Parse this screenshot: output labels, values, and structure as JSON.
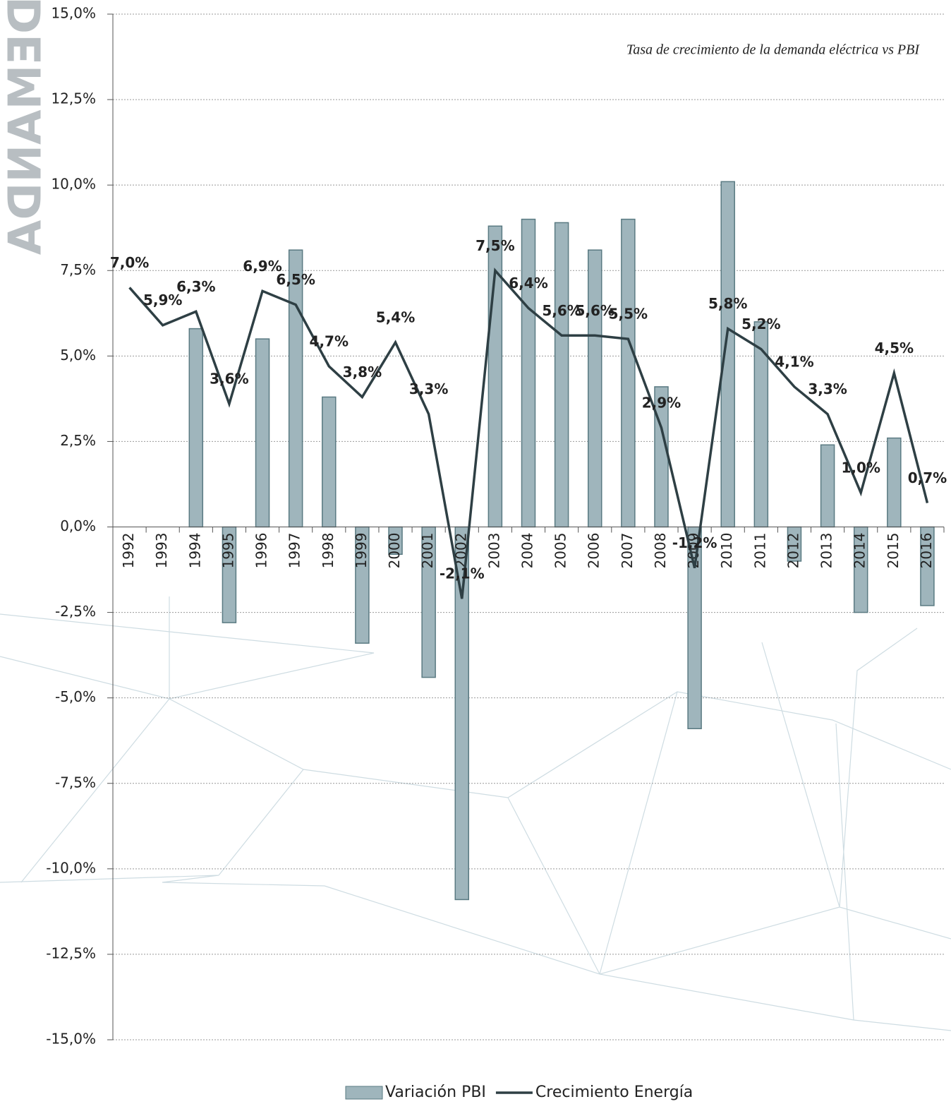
{
  "chart_data": {
    "type": "bar",
    "title": "Tasa de crecimiento de la demanda eléctrica vs PBI",
    "watermark": "DEMANDA",
    "categories": [
      "1992",
      "1993",
      "1994",
      "1995",
      "1996",
      "1997",
      "1998",
      "1999",
      "2000",
      "2001",
      "2002",
      "2003",
      "2004",
      "2005",
      "2006",
      "2007",
      "2008",
      "2009",
      "2010",
      "2011",
      "2012",
      "2013",
      "2014",
      "2015",
      "2016"
    ],
    "series": [
      {
        "name": "Variación PBI",
        "type": "bar",
        "color": "#9fb5bc",
        "values": [
          null,
          null,
          5.8,
          -2.8,
          5.5,
          8.1,
          3.8,
          -3.4,
          -0.8,
          -4.4,
          -10.9,
          8.8,
          9.0,
          8.9,
          8.1,
          9.0,
          4.1,
          -5.9,
          10.1,
          6.0,
          -1.0,
          2.4,
          -2.5,
          2.6,
          -2.3
        ]
      },
      {
        "name": "Crecimiento Energía",
        "type": "line",
        "color": "#2e3f44",
        "values": [
          7.0,
          5.9,
          6.3,
          3.6,
          6.9,
          6.5,
          4.7,
          3.8,
          5.4,
          3.3,
          -2.1,
          7.5,
          6.4,
          5.6,
          5.6,
          5.5,
          2.9,
          -1.2,
          5.8,
          5.2,
          4.1,
          3.3,
          1.0,
          4.5,
          0.7
        ],
        "value_labels": [
          "7,0%",
          "5,9%",
          "6,3%",
          "3,6%",
          "6,9%",
          "6,5%",
          "4,7%",
          "3,8%",
          "5,4%",
          "3,3%",
          "-2,1%",
          "7,5%",
          "6,4%",
          "5,6%",
          "5,6%",
          "5,5%",
          "2,9%",
          "-1,2%",
          "5,8%",
          "5,2%",
          "4,1%",
          "3,3%",
          "1,0%",
          "4,5%",
          "0,7%"
        ]
      }
    ],
    "ylim": [
      -15,
      15
    ],
    "yticks": [
      {
        "value": -15,
        "label": "-15,0%"
      },
      {
        "value": -12.5,
        "label": "-12,5%"
      },
      {
        "value": -10,
        "label": "-10,0%"
      },
      {
        "value": -7.5,
        "label": "-7,5%"
      },
      {
        "value": -5,
        "label": "-5,0%"
      },
      {
        "value": -2.5,
        "label": "-2,5%"
      },
      {
        "value": 0,
        "label": "0,0%"
      },
      {
        "value": 2.5,
        "label": "2,5%"
      },
      {
        "value": 5,
        "label": "5,0%"
      },
      {
        "value": 7.5,
        "label": "7,5%"
      },
      {
        "value": 10,
        "label": "10,0%"
      },
      {
        "value": 12.5,
        "label": "12,5%"
      },
      {
        "value": 15,
        "label": "15,0%"
      }
    ],
    "grid": true,
    "legend": "bottom"
  }
}
